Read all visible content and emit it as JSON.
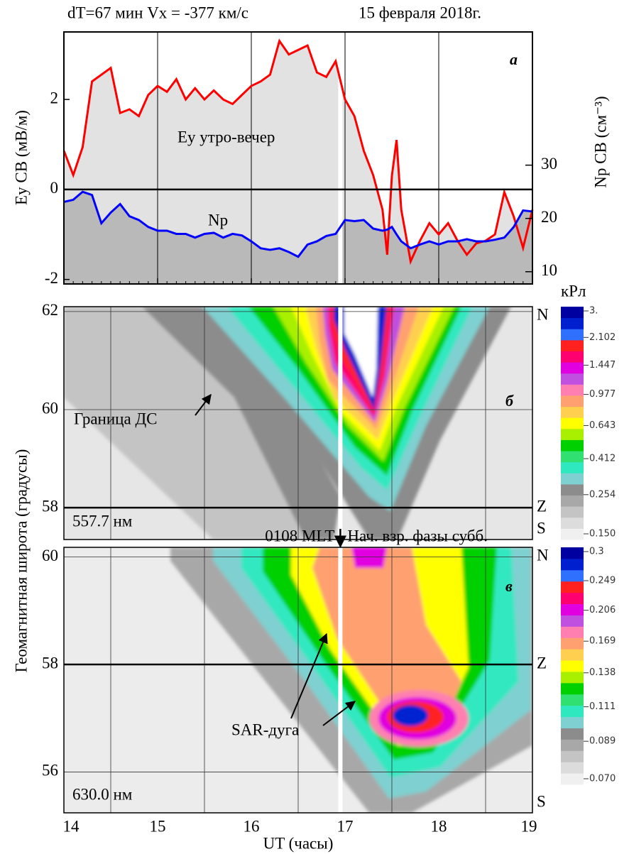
{
  "chart_data": [
    {
      "type": "line",
      "title": "dT=67 мин  Vx = -377 км/с",
      "subtitle": "15 февраля 2018г.",
      "panel_label": "а",
      "ylabel": "Ey СВ (мВ/м)",
      "y2label": "Np СВ (см⁻³)",
      "xlim": [
        14,
        19
      ],
      "xticks": [
        14,
        15,
        16,
        17,
        18,
        19
      ],
      "ylim": [
        -2.1,
        3.5
      ],
      "yticks": [
        -2,
        0,
        2
      ],
      "y2lim": [
        7.7,
        55
      ],
      "y2ticks": [
        10,
        20,
        30
      ],
      "x": [
        14.0,
        14.1,
        14.2,
        14.3,
        14.4,
        14.5,
        14.6,
        14.7,
        14.8,
        14.9,
        15.0,
        15.1,
        15.2,
        15.3,
        15.4,
        15.5,
        15.6,
        15.7,
        15.8,
        15.9,
        16.0,
        16.1,
        16.2,
        16.3,
        16.4,
        16.5,
        16.6,
        16.7,
        16.8,
        16.9,
        17.0,
        17.1,
        17.2,
        17.3,
        17.4,
        17.45,
        17.5,
        17.55,
        17.6,
        17.7,
        17.8,
        17.9,
        18.0,
        18.1,
        18.2,
        18.3,
        18.4,
        18.5,
        18.6,
        18.7,
        18.8,
        18.9,
        19.0
      ],
      "series": [
        {
          "name": "Ey утро-вечер",
          "color": "#ff0000",
          "fill": "#e2e2e2",
          "values": [
            0.86,
            0.32,
            0.94,
            2.4,
            2.55,
            2.7,
            1.7,
            1.78,
            1.63,
            2.1,
            2.3,
            2.17,
            2.45,
            2.0,
            2.25,
            2.0,
            2.2,
            2.0,
            1.9,
            2.1,
            2.3,
            2.4,
            2.55,
            3.3,
            3.0,
            3.1,
            3.2,
            2.6,
            2.5,
            2.85,
            2.0,
            1.63,
            0.86,
            0.32,
            -0.45,
            -1.45,
            0.3,
            1.1,
            -0.45,
            -1.6,
            -1.14,
            -0.75,
            -1.0,
            -0.75,
            -1.14,
            -1.45,
            -1.2,
            -1.14,
            -1.0,
            -0.06,
            -0.6,
            -1.3,
            -0.45
          ]
        },
        {
          "name": "Np",
          "color": "#0000ff",
          "fill": "#b9b9b9",
          "axis": "y2",
          "values": [
            23.1,
            23.5,
            25,
            24.4,
            19.1,
            21.1,
            22.7,
            20.4,
            19.7,
            18.4,
            17.7,
            17.7,
            17.1,
            17.1,
            16.4,
            17.1,
            17.3,
            16.4,
            17.1,
            16.8,
            15.7,
            14.4,
            14.1,
            14.4,
            13.7,
            12.8,
            15.1,
            15.7,
            16.7,
            17.1,
            19.7,
            19.5,
            19.7,
            18.1,
            17.7,
            17.9,
            18.4,
            17.0,
            15.7,
            14.4,
            15.1,
            15.7,
            15.1,
            15.7,
            15.7,
            16.1,
            15.7,
            15.7,
            16.0,
            16.4,
            18.4,
            21.5,
            21.3
          ]
        }
      ]
    },
    {
      "type": "heatmap",
      "panel_label": "б",
      "ylabel": "Геомагнитная широта (градусы)",
      "wavelength": "557.7 нм",
      "annotation": "Граница ДС",
      "xlim": [
        14,
        19
      ],
      "xgrid": [
        14.5,
        15.5,
        16.5,
        17.5,
        18.5
      ],
      "ylim": [
        57.35,
        62.1
      ],
      "yticks": [
        58,
        60,
        62
      ],
      "zenith": 58,
      "direction_labels": [
        "N",
        "Z",
        "S"
      ],
      "colorbar": {
        "title": "кРл",
        "scale": "log",
        "lim": [
          0.15,
          3
        ],
        "ticks": [
          {
            "value": 3,
            "label": "3."
          },
          2.102,
          1.447,
          0.977,
          0.643,
          0.412,
          0.254,
          {
            "value": 0.15,
            "label": "0.150"
          }
        ],
        "colors": [
          "#f0f0f0",
          "#dcdcdc",
          "#c4c4c4",
          "#a8a8a8",
          "#8c8c8c",
          "#7fd0d0",
          "#30e8c0",
          "#30e070",
          "#00d000",
          "#a8f000",
          "#ffff00",
          "#ffd050",
          "#ffa070",
          "#ff80b0",
          "#c050e0",
          "#e000e0",
          "#ff0070",
          "#ff2020",
          "#3070ff",
          "#0020d0",
          "#0000a0"
        ]
      }
    },
    {
      "type": "heatmap",
      "panel_label": "в",
      "wavelength": "630.0 нм",
      "annotation": "SAR-дуга",
      "xlim": [
        14,
        19
      ],
      "xticks": [
        14,
        15,
        16,
        17,
        18,
        19
      ],
      "xgrid": [
        14.5,
        15.5,
        16.5,
        17.5,
        18.5
      ],
      "xlabel": "UT (часы)",
      "ylim": [
        55.24,
        60.18
      ],
      "yticks": [
        56,
        58,
        60
      ],
      "zenith": 58,
      "direction_labels": [
        "N",
        "Z",
        "S"
      ],
      "onset": {
        "ut": 16.95,
        "mlt": "0108 MLT",
        "label": "Нач. взр. фазы субб."
      },
      "colorbar": {
        "scale": "log",
        "lim": [
          0.07,
          0.3
        ],
        "ticks": [
          0.3,
          0.249,
          0.206,
          0.169,
          0.138,
          0.111,
          0.089,
          {
            "value": 0.07,
            "label": "0.070"
          }
        ],
        "colors": [
          "#f0f0f0",
          "#dcdcdc",
          "#c4c4c4",
          "#a8a8a8",
          "#8c8c8c",
          "#7fd0d0",
          "#30e8c0",
          "#30e070",
          "#00d000",
          "#a8f000",
          "#ffff00",
          "#ffd050",
          "#ffa070",
          "#ff80b0",
          "#c050e0",
          "#e000e0",
          "#ff0070",
          "#ff2020",
          "#3070ff",
          "#0020d0",
          "#0000a0"
        ]
      }
    }
  ]
}
